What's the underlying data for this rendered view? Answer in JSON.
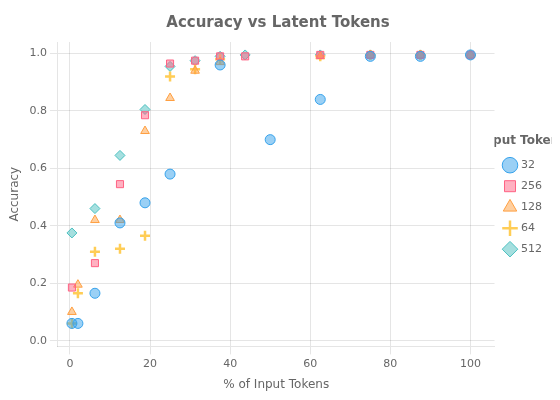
{
  "chart_data": {
    "type": "scatter",
    "title": "Accuracy vs Latent Tokens",
    "x_label": "% of Input Tokens",
    "y_label": "Accuracy",
    "legend_title": "Input Tokens",
    "legend": "right",
    "grid": true,
    "xlim": [
      -3,
      106
    ],
    "ylim": [
      -0.02,
      1.04
    ],
    "xticks": [
      0,
      20,
      40,
      60,
      80,
      100
    ],
    "yticks": [
      {
        "value": 0.0,
        "label": "0.0"
      },
      {
        "value": 0.2,
        "label": "0.2"
      },
      {
        "value": 0.4,
        "label": "0.4"
      },
      {
        "value": 0.6,
        "label": "0.6"
      },
      {
        "value": 0.8,
        "label": "0.8"
      },
      {
        "value": 1.0,
        "label": "1.0"
      }
    ],
    "series": [
      {
        "name": "32",
        "marker": "circle",
        "x": [
          0.5,
          2.0,
          6.25,
          12.5,
          18.75,
          25.0,
          37.5,
          50.0,
          62.5,
          75.0,
          87.5,
          100.0
        ],
        "values": [
          0.06,
          0.06,
          0.165,
          0.41,
          0.48,
          0.58,
          0.96,
          0.7,
          0.84,
          0.99,
          0.99,
          0.995
        ]
      },
      {
        "name": "256",
        "marker": "square",
        "x": [
          0.5,
          6.25,
          12.5,
          18.75,
          25.0,
          31.25,
          37.5,
          43.75,
          62.5,
          75.0,
          87.5,
          100.0
        ],
        "values": [
          0.185,
          0.27,
          0.545,
          0.785,
          0.965,
          0.975,
          0.99,
          0.99,
          0.995,
          0.995,
          0.995,
          0.995
        ]
      },
      {
        "name": "128",
        "marker": "triangle",
        "x": [
          0.5,
          2.0,
          6.25,
          12.5,
          18.75,
          25.0,
          31.25,
          37.5,
          62.5,
          75.0,
          87.5,
          100.0
        ],
        "values": [
          0.1,
          0.195,
          0.42,
          0.42,
          0.73,
          0.845,
          0.94,
          0.97,
          0.99,
          0.995,
          0.995,
          0.995
        ]
      },
      {
        "name": "64",
        "marker": "plus",
        "x": [
          0.5,
          2.0,
          6.25,
          12.5,
          18.75,
          25.0,
          31.25,
          37.5,
          62.5,
          75.0,
          87.5,
          100.0
        ],
        "values": [
          0.06,
          0.165,
          0.31,
          0.32,
          0.365,
          0.92,
          0.945,
          0.98,
          0.99,
          0.995,
          0.995,
          0.995
        ]
      },
      {
        "name": "512",
        "marker": "diamond",
        "x": [
          0.5,
          6.25,
          12.5,
          18.75,
          25.0,
          31.25,
          37.5,
          43.75,
          62.5,
          75.0,
          87.5,
          100.0
        ],
        "values": [
          0.375,
          0.46,
          0.645,
          0.805,
          0.955,
          0.975,
          0.99,
          0.995,
          0.995,
          0.995,
          0.995,
          0.995
        ]
      }
    ]
  }
}
